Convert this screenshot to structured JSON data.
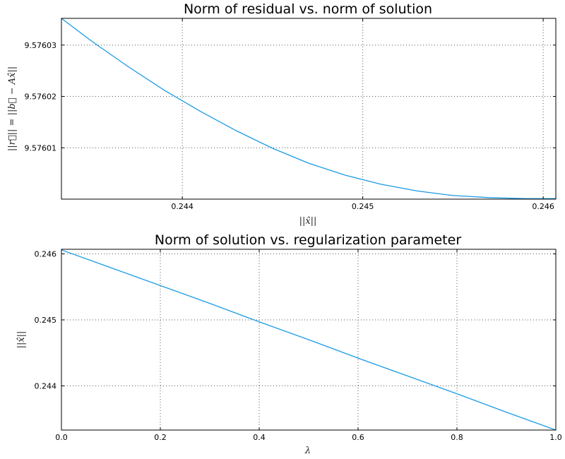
{
  "colors": {
    "line": "#1a9be6",
    "axes": "#000000",
    "grid": "#555555",
    "background": "#ffffff"
  },
  "chart_data": [
    {
      "type": "line",
      "title": "Norm of residual vs. norm of solution",
      "xlabel": "||x̂||",
      "ylabel": "||r⃗|| = ||b⃗ − Ax̂||",
      "xlim": [
        0.24333,
        0.24607
      ],
      "ylim": [
        9.576,
        9.5760352
      ],
      "xticks": [
        0.244,
        0.245,
        0.246
      ],
      "xtick_labels": [
        "0.244",
        "0.245",
        "0.246"
      ],
      "yticks": [
        9.57601,
        9.57602,
        9.57603
      ],
      "ytick_labels": [
        "9.57601",
        "9.57602",
        "9.57603"
      ],
      "grid": true,
      "series": [
        {
          "x": [
            0.24333,
            0.2435,
            0.2437,
            0.2439,
            0.2441,
            0.2443,
            0.2445,
            0.2447,
            0.2449,
            0.2451,
            0.2453,
            0.2455,
            0.2457,
            0.2459,
            0.246,
            0.24607
          ],
          "values": [
            9.5760352,
            9.5760307,
            9.5760258,
            9.5760212,
            9.5760171,
            9.5760133,
            9.5760099,
            9.576007,
            9.5760047,
            9.5760029,
            9.5760016,
            9.5760007,
            9.5760003,
            9.5760001,
            9.5760001,
            9.5760001
          ]
        }
      ]
    },
    {
      "type": "line",
      "title": "Norm of solution vs. regularization parameter",
      "xlabel": "λ",
      "ylabel": "||x̂||",
      "xlim": [
        0,
        1
      ],
      "ylim": [
        0.24333,
        0.24607
      ],
      "xticks": [
        0,
        0.2,
        0.4,
        0.6,
        0.8,
        1.0
      ],
      "xtick_labels": [
        "0.0",
        "0.2",
        "0.4",
        "0.6",
        "0.8",
        "1.0"
      ],
      "yticks": [
        0.244,
        0.245,
        0.246
      ],
      "ytick_labels": [
        "0.244",
        "0.245",
        "0.246"
      ],
      "grid": true,
      "series": [
        {
          "x": [
            0,
            0.1,
            0.2,
            0.3,
            0.4,
            0.5,
            0.6,
            0.7,
            0.8,
            0.9,
            1.0
          ],
          "values": [
            0.24606,
            0.24579,
            0.24552,
            0.24525,
            0.24497,
            0.2447,
            0.24442,
            0.24415,
            0.24388,
            0.2436,
            0.24333
          ]
        }
      ]
    }
  ]
}
